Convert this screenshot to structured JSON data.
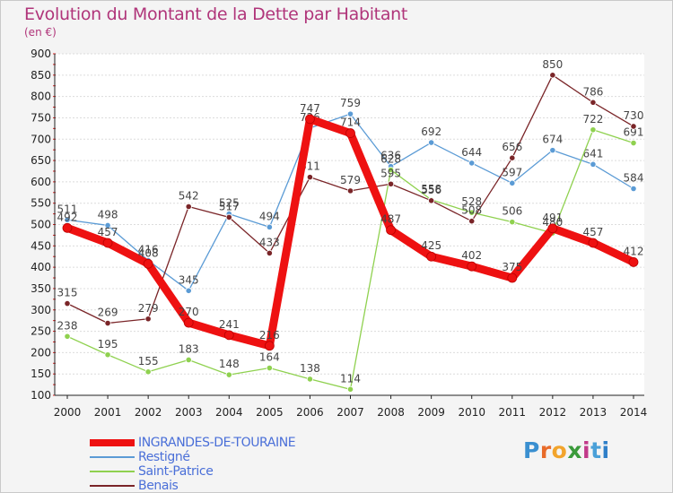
{
  "title": "Evolution du Montant de la Dette par Habitant",
  "subtitle": "(en €)",
  "logo": {
    "text": "Proxiti",
    "letter_colors": [
      "#3a8fd0",
      "#e86b2a",
      "#f2a42c",
      "#3a9a3a",
      "#c23a8a",
      "#4aa0d8",
      "#2f7fc8"
    ]
  },
  "colors": {
    "background": "#f4f4f4",
    "plot_background": "#ffffff",
    "title": "#b0357a",
    "axis": "#222222",
    "tick_marks": "#d82020",
    "legend_text": "#4a6fd8",
    "value_label": "#444444"
  },
  "chart_data": {
    "type": "line",
    "title": "Evolution du Montant de la Dette par Habitant",
    "subtitle": "(en €)",
    "x": [
      2000,
      2001,
      2002,
      2003,
      2004,
      2005,
      2006,
      2007,
      2008,
      2009,
      2010,
      2011,
      2012,
      2013,
      2014
    ],
    "ylim": [
      100,
      900
    ],
    "yticks": [
      100,
      150,
      200,
      250,
      300,
      350,
      400,
      450,
      500,
      550,
      600,
      650,
      700,
      750,
      800,
      850,
      900
    ],
    "grid": "horizontal",
    "legend": "bottom-left",
    "series": [
      {
        "name": "INGRANDES-DE-TOURAINE",
        "color": "#ee1111",
        "highlight": true,
        "values": [
          492,
          457,
          408,
          270,
          241,
          216,
          747,
          714,
          487,
          425,
          402,
          375,
          491,
          457,
          412
        ]
      },
      {
        "name": "Restigné",
        "color": "#5b9bd5",
        "values": [
          511,
          498,
          416,
          345,
          525,
          494,
          726,
          759,
          636,
          692,
          644,
          597,
          674,
          641,
          584
        ]
      },
      {
        "name": "Saint-Patrice",
        "color": "#8fd14f",
        "values": [
          238,
          195,
          155,
          183,
          148,
          164,
          138,
          114,
          628,
          558,
          528,
          506,
          480,
          722,
          691
        ]
      },
      {
        "name": "Benais",
        "color": "#7a2528",
        "values": [
          315,
          269,
          279,
          542,
          517,
          433,
          611,
          579,
          595,
          556,
          508,
          656,
          850,
          786,
          730
        ]
      }
    ]
  }
}
